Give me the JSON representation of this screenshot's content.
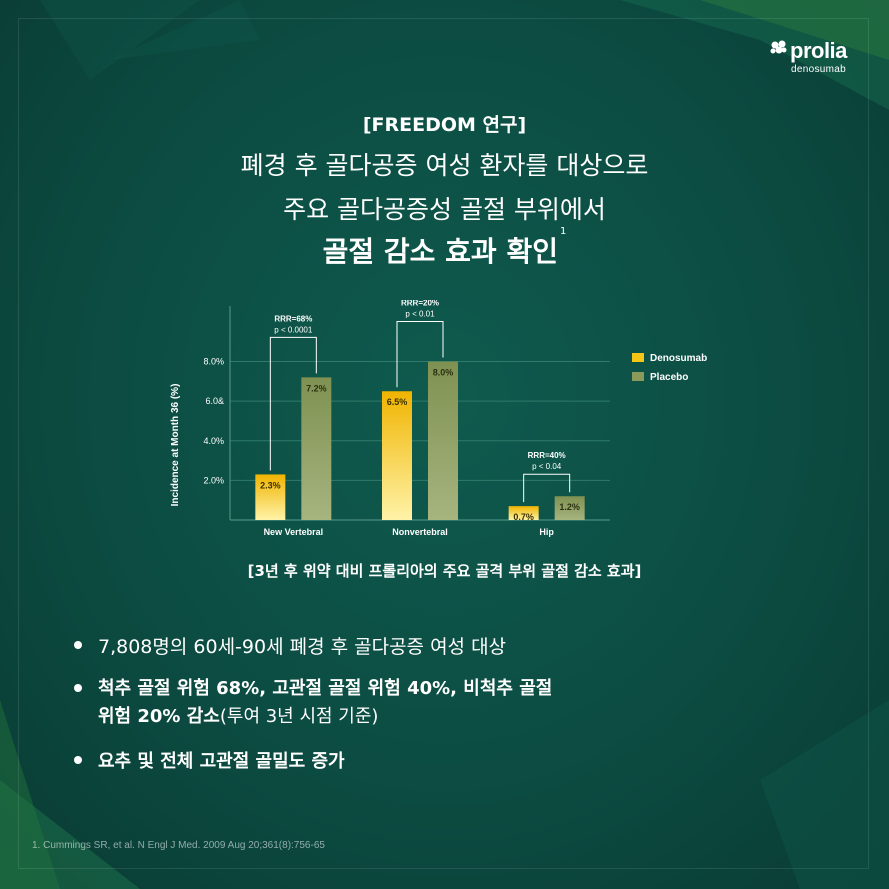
{
  "brand": {
    "name": "prolia",
    "sub": "denosumab"
  },
  "header": {
    "tag": "[FREEDOM 연구]",
    "line1": "폐경 후 골다공증 여성 환자를 대상으로",
    "line2": "주요 골다공증성 골절 부위에서",
    "line3": "골절 감소 효과 확인",
    "sup": "1"
  },
  "chart_data": {
    "type": "bar",
    "categories": [
      "New Vertebral",
      "Nonvertebral",
      "Hip"
    ],
    "series": [
      {
        "name": "Denosumab",
        "values": [
          2.3,
          6.5,
          0.7
        ],
        "labels": [
          "2.3%",
          "6.5%",
          "0.7%"
        ],
        "color": "#f5c518"
      },
      {
        "name": "Placebo",
        "values": [
          7.2,
          8.0,
          1.2
        ],
        "labels": [
          "7.2%",
          "8.0%",
          "1.2%"
        ],
        "color": "#8a9a5b"
      }
    ],
    "ylabel": "Incidence at Month 36 (%)",
    "yticks": [
      2.0,
      4.0,
      6.0,
      8.0
    ],
    "ytick_labels": [
      "2.0%",
      "4.0%",
      "6.0&",
      "8.0%"
    ],
    "ylim": [
      0,
      10.5
    ],
    "grid": true,
    "legend": "top-right",
    "annotations": [
      {
        "category": "New Vertebral",
        "rrr": "RRR=68%",
        "p": "p < 0.0001"
      },
      {
        "category": "Nonvertebral",
        "rrr": "RRR=20%",
        "p": "p < 0.01"
      },
      {
        "category": "Hip",
        "rrr": "RRR=40%",
        "p": "p < 0.04"
      }
    ]
  },
  "caption": "[3년 후 위약 대비 프롤리아의 주요 골격 부위 골절 감소 효과]",
  "bullets": {
    "b1": "7,808명의 60세-90세 폐경 후 골다공증 여성 대상",
    "b2_bold": "척추 골절 위험 68%, 고관절 골절 위험 40%, 비척추 골절",
    "b2_bold2": "위험 20% 감소",
    "b2_normal": "(투여 3년 시점 기준)",
    "b3": "요추 및 전체 고관절 골밀도 증가"
  },
  "reference": "1. Cummings SR, et al. N Engl J Med. 2009 Aug 20;361(8):756-65"
}
